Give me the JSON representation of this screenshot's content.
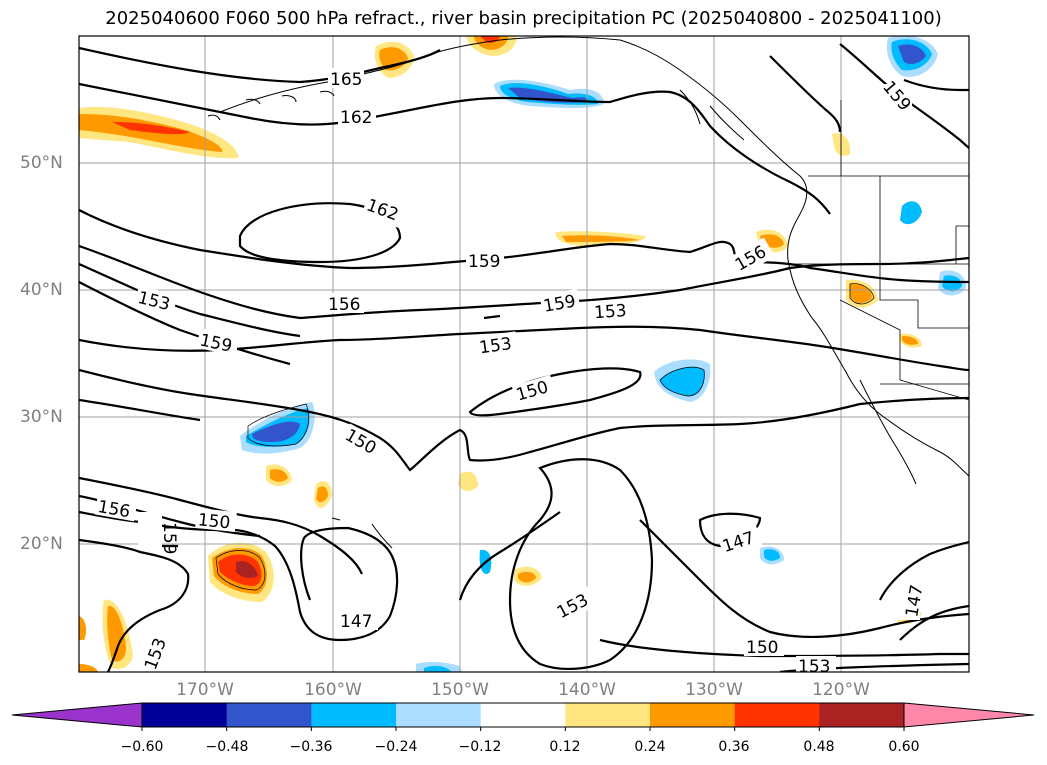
{
  "title": "2025040600 F060 500 hPa refract., river basin precipitation PC (2025040800 - 2025041100)",
  "lat_labels": [
    "50°N",
    "40°N",
    "30°N",
    "20°N"
  ],
  "lon_labels": [
    "170°W",
    "160°W",
    "150°W",
    "140°W",
    "130°W",
    "120°W"
  ],
  "contour_labels": [
    "165",
    "162",
    "162",
    "159",
    "153",
    "156",
    "159",
    "159",
    "156",
    "153",
    "150",
    "150",
    "156",
    "159",
    "150",
    "147",
    "153",
    "147",
    "150",
    "153",
    "147",
    "153",
    "156",
    "159"
  ],
  "colorbar": {
    "ticks": [
      "−0.60",
      "−0.48",
      "−0.36",
      "−0.24",
      "−0.12",
      "0.12",
      "0.24",
      "0.36",
      "0.48",
      "0.60"
    ],
    "colors": [
      "#9933cc",
      "#000099",
      "#3355cc",
      "#00bbff",
      "#aaddff",
      "#ffffff",
      "#ffe680",
      "#ff9900",
      "#ff3300",
      "#aa2222",
      "#ff88aa"
    ]
  },
  "colors": {
    "contour": "#000000",
    "grid": "#808080",
    "coastline": "#000000"
  }
}
